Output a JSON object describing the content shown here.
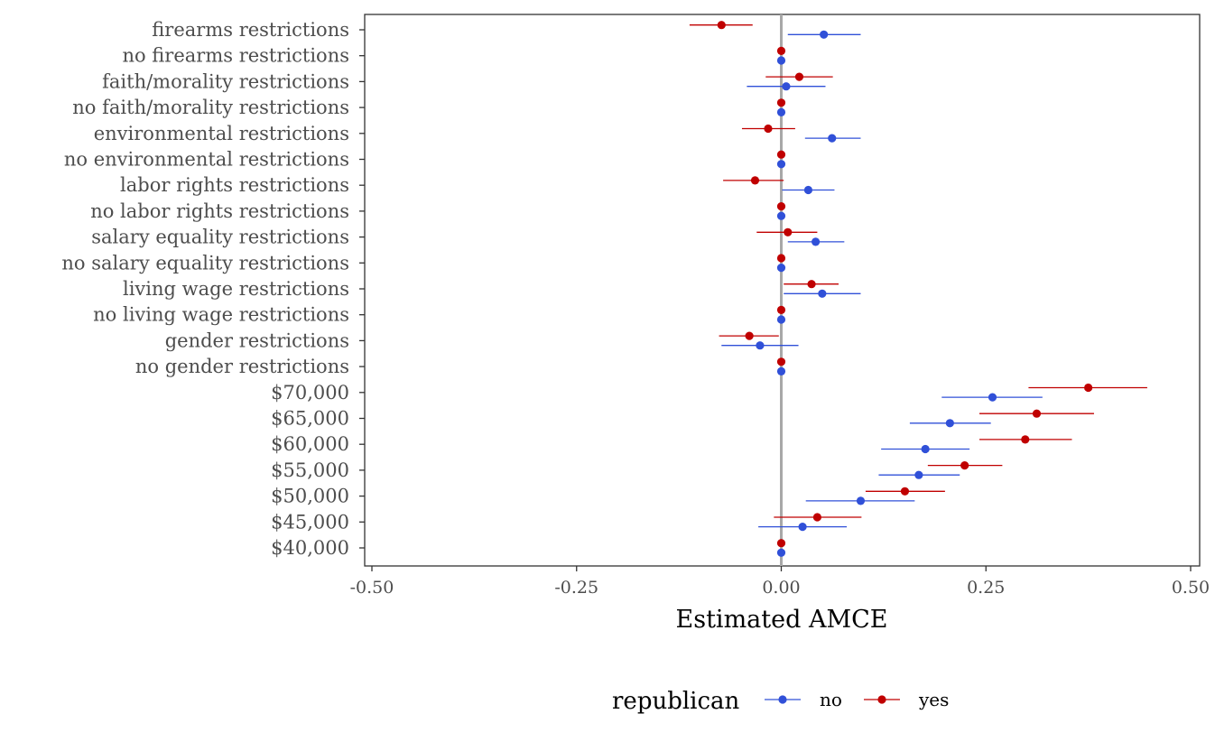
{
  "chart_data": {
    "type": "scatter",
    "subtype": "coefficient-plot-with-error-bars",
    "xlabel": "Estimated AMCE",
    "xlim": [
      -0.5,
      0.5
    ],
    "xticks": [
      -0.5,
      -0.25,
      0.0,
      0.25,
      0.5
    ],
    "xtick_labels": [
      "-0.50",
      "-0.25",
      "0.00",
      "0.25",
      "0.50"
    ],
    "reference_line": 0,
    "grid": false,
    "legend": {
      "title": "republican",
      "placement": "bottom",
      "entries": [
        {
          "label": "no",
          "color": "#3050d8"
        },
        {
          "label": "yes",
          "color": "#c00000"
        }
      ]
    },
    "categories": [
      "firearms restrictions",
      "no firearms restrictions",
      "faith/morality restrictions",
      "no faith/morality restrictions",
      "environmental restrictions",
      "no environmental restrictions",
      "labor rights restrictions",
      "no labor rights restrictions",
      "salary equality restrictions",
      "no salary equality restrictions",
      "living wage restrictions",
      "no living wage restrictions",
      "gender restrictions",
      "no gender restrictions",
      "$70,000",
      "$65,000",
      "$60,000",
      "$55,000",
      "$50,000",
      "$45,000",
      "$40,000"
    ],
    "series": [
      {
        "name": "no",
        "color": "#3050d8",
        "estimate": [
          0.052,
          0,
          0.006,
          0,
          0.062,
          0,
          0.033,
          0,
          0.042,
          0,
          0.05,
          0,
          -0.026,
          0,
          0.258,
          0.206,
          0.176,
          0.168,
          0.097,
          0.026,
          0
        ],
        "lower": [
          0.008,
          0,
          -0.042,
          0,
          0.029,
          0,
          0.001,
          0,
          0.008,
          0,
          0.003,
          0,
          -0.073,
          0,
          0.196,
          0.157,
          0.122,
          0.119,
          0.03,
          -0.028,
          0
        ],
        "upper": [
          0.097,
          0,
          0.054,
          0,
          0.097,
          0,
          0.065,
          0,
          0.077,
          0,
          0.097,
          0,
          0.021,
          0,
          0.319,
          0.256,
          0.23,
          0.218,
          0.163,
          0.08,
          0
        ]
      },
      {
        "name": "yes",
        "color": "#c00000",
        "estimate": [
          -0.073,
          0,
          0.022,
          0,
          -0.016,
          0,
          -0.032,
          0,
          0.008,
          0,
          0.037,
          0,
          -0.039,
          0,
          0.375,
          0.312,
          0.298,
          0.224,
          0.151,
          0.044,
          0
        ],
        "lower": [
          -0.112,
          0,
          -0.019,
          0,
          -0.048,
          0,
          -0.071,
          0,
          -0.03,
          0,
          0.003,
          0,
          -0.076,
          0,
          0.302,
          0.242,
          0.242,
          0.179,
          0.103,
          -0.009,
          0
        ],
        "upper": [
          -0.035,
          0,
          0.063,
          0,
          0.017,
          0,
          0.003,
          0,
          0.044,
          0,
          0.07,
          0,
          -0.003,
          0,
          0.447,
          0.382,
          0.355,
          0.27,
          0.2,
          0.098,
          0
        ]
      }
    ]
  }
}
